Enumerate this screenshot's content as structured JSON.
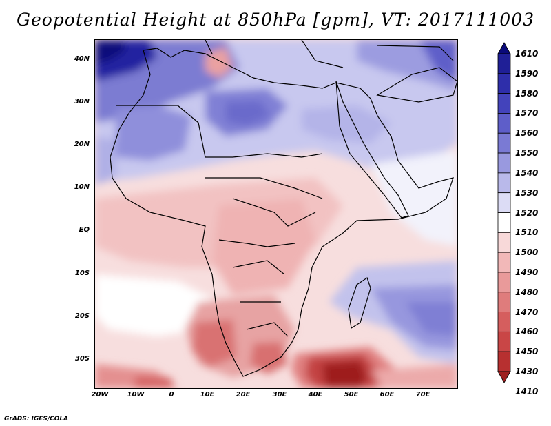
{
  "title": "Geopotential Height at 850hPa [gpm], VT: 2017111003",
  "credit": "GrADS: IGES/COLA",
  "map": {
    "lat_labels": [
      "40N",
      "30N",
      "20N",
      "10N",
      "EQ",
      "10S",
      "20S",
      "30S"
    ],
    "lon_labels": [
      "20W",
      "10W",
      "0",
      "10E",
      "20E",
      "30E",
      "40E",
      "50E",
      "60E",
      "70E"
    ]
  },
  "colorbar": {
    "levels": [
      "1610",
      "1590",
      "1580",
      "1570",
      "1560",
      "1550",
      "1540",
      "1530",
      "1520",
      "1510",
      "1500",
      "1490",
      "1480",
      "1470",
      "1460",
      "1450",
      "1430",
      "1410"
    ],
    "colors": [
      "#0a0a7a",
      "#1f1f96",
      "#2e2eaa",
      "#4343bb",
      "#5e5ec9",
      "#7a7ad4",
      "#9999df",
      "#b9b9ea",
      "#dcdcf5",
      "#ffffff",
      "#f8d9d9",
      "#f2b8b8",
      "#e99a9a",
      "#df7c7c",
      "#d55e5e",
      "#c94646",
      "#b73030",
      "#9e1f1f"
    ]
  }
}
